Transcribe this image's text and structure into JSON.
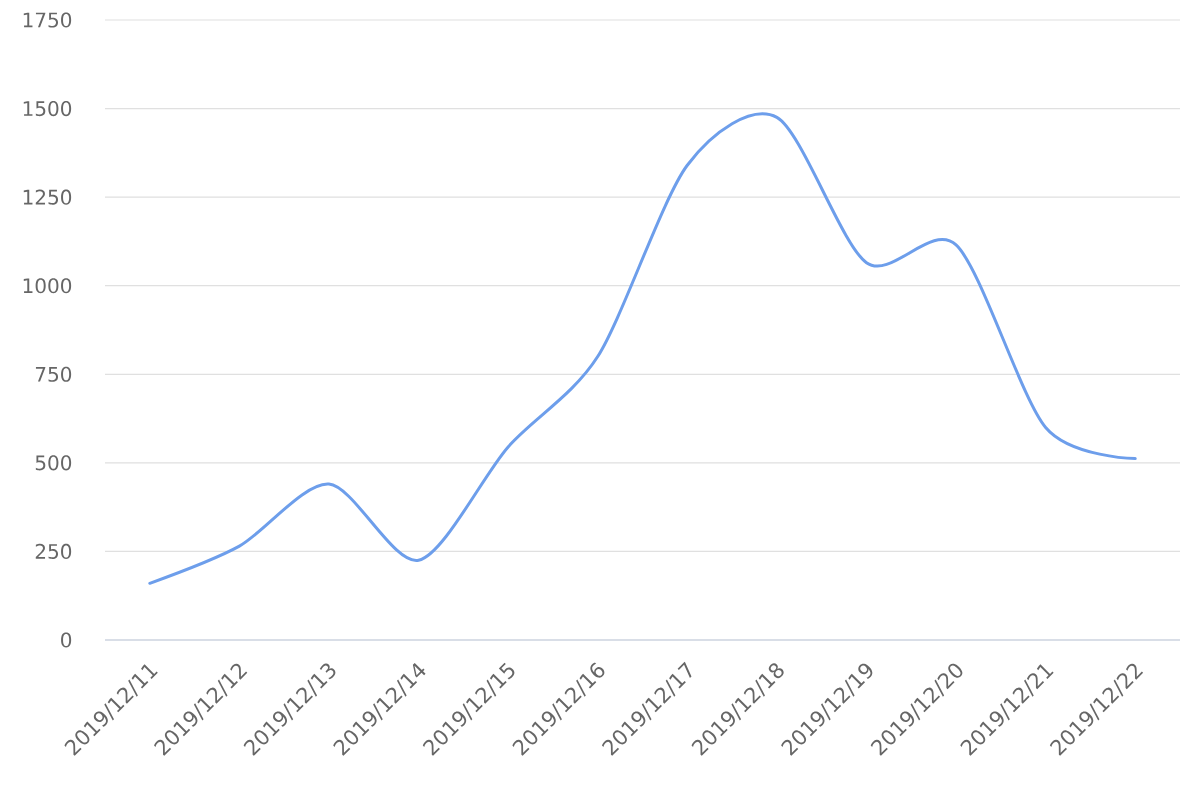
{
  "chart_data": {
    "type": "line",
    "categories": [
      "2019/12/11",
      "2019/12/12",
      "2019/12/13",
      "2019/12/14",
      "2019/12/15",
      "2019/12/16",
      "2019/12/17",
      "2019/12/18",
      "2019/12/19",
      "2019/12/20",
      "2019/12/21",
      "2019/12/22"
    ],
    "series": [
      {
        "color": "#6d9eeb",
        "values": [
          160,
          265,
          440,
          225,
          545,
          800,
          1340,
          1475,
          1065,
          1115,
          600,
          512
        ]
      }
    ],
    "ylim": [
      0,
      1750
    ],
    "yticks": [
      0,
      250,
      500,
      750,
      1000,
      1250,
      1500,
      1750
    ],
    "grid": "y",
    "marker": "none",
    "line_style": "solid"
  }
}
